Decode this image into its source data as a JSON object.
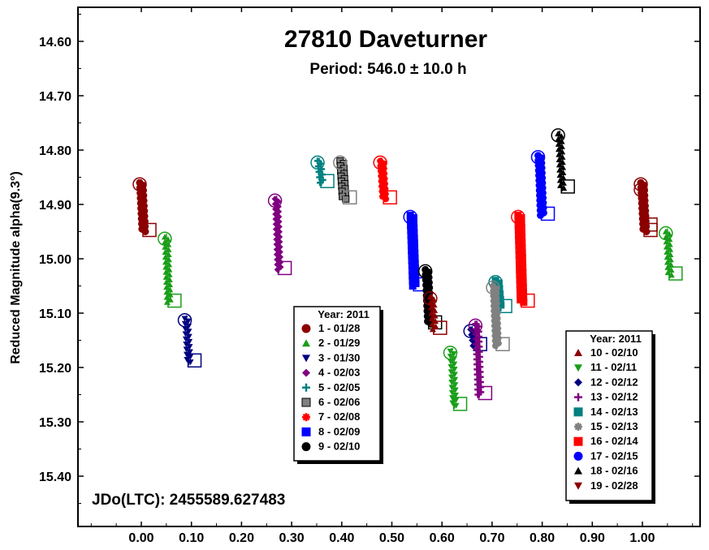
{
  "chart_data": {
    "type": "scatter",
    "title": "27810 Daveturner",
    "subtitle": "Period: 546.0 ± 10.0 h",
    "xlabel": "",
    "ylabel": "Reduced Magnitude alpha(9.3°)",
    "annotation": "JDo(LTC): 2455589.627483",
    "xlim": [
      -0.1,
      1.12
    ],
    "ylim": [
      14.55,
      15.5
    ],
    "y_inverted": true,
    "x_ticks": [
      "0.00",
      "0.10",
      "0.20",
      "0.30",
      "0.40",
      "0.50",
      "0.60",
      "0.70",
      "0.80",
      "0.90",
      "1.00"
    ],
    "y_ticks": [
      "14.60",
      "14.70",
      "14.80",
      "14.90",
      "15.00",
      "15.10",
      "15.20",
      "15.30",
      "15.40"
    ],
    "legend_left": {
      "header": "Year: 2011",
      "entries": [
        "1 - 01/28",
        "2 - 01/29",
        "3 - 01/30",
        "4 - 02/03",
        "5 - 02/05",
        "6 - 02/06",
        "7 - 02/08",
        "8 - 02/09",
        "9 - 02/10"
      ]
    },
    "legend_right": {
      "header": "Year: 2011",
      "entries": [
        "10 - 02/10",
        "11 - 02/11",
        "12 - 02/12",
        "13 - 02/12",
        "14 - 02/13",
        "15 - 02/13",
        "16 - 02/14",
        "17 - 02/15",
        "18 - 02/16",
        "19 - 02/28"
      ]
    },
    "series": [
      {
        "id": 1,
        "color": "#8b0000",
        "marker": "circle",
        "x": [
          0.0,
          1.0
        ],
        "y_range": [
          [
            14.86,
            14.95
          ],
          [
            14.86,
            14.95
          ]
        ]
      },
      {
        "id": 2,
        "color": "#1a9e1a",
        "marker": "triangle-up",
        "x": [
          0.05,
          1.05
        ],
        "y_range": [
          [
            14.96,
            15.08
          ],
          [
            14.95,
            15.03
          ]
        ]
      },
      {
        "id": 3,
        "color": "#000080",
        "marker": "triangle-down",
        "x": [
          0.09
        ],
        "y_range": [
          [
            15.11,
            15.19
          ]
        ]
      },
      {
        "id": 4,
        "color": "#800080",
        "marker": "diamond",
        "x": [
          0.27
        ],
        "y_range": [
          [
            14.89,
            15.02
          ]
        ]
      },
      {
        "id": 5,
        "color": "#008080",
        "marker": "plus",
        "x": [
          0.355
        ],
        "y_range": [
          [
            14.82,
            14.86
          ]
        ]
      },
      {
        "id": 6,
        "color": "#808080",
        "marker": "square",
        "x": [
          0.4
        ],
        "y_range": [
          [
            14.82,
            14.89
          ]
        ]
      },
      {
        "id": 7,
        "color": "#ff0000",
        "marker": "asterisk",
        "x": [
          0.48
        ],
        "y_range": [
          [
            14.82,
            14.89
          ]
        ]
      },
      {
        "id": 8,
        "color": "#0000ff",
        "marker": "square",
        "x": [
          0.54
        ],
        "y_range": [
          [
            14.92,
            15.05
          ]
        ]
      },
      {
        "id": 9,
        "color": "#000000",
        "marker": "circle",
        "x": [
          0.57
        ],
        "y_range": [
          [
            15.02,
            15.12
          ]
        ]
      },
      {
        "id": 10,
        "color": "#8b0000",
        "marker": "triangle-up",
        "x": [
          0.58
        ],
        "y_range": [
          [
            15.07,
            15.13
          ]
        ]
      },
      {
        "id": 11,
        "color": "#1a9e1a",
        "marker": "triangle-down",
        "x": [
          0.62
        ],
        "y_range": [
          [
            15.17,
            15.27
          ]
        ]
      },
      {
        "id": 12,
        "color": "#000080",
        "marker": "diamond",
        "x": [
          0.66
        ],
        "y_range": [
          [
            15.13,
            15.16
          ]
        ]
      },
      {
        "id": 13,
        "color": "#800080",
        "marker": "plus",
        "x": [
          0.67
        ],
        "y_range": [
          [
            15.12,
            15.25
          ]
        ]
      },
      {
        "id": 14,
        "color": "#008080",
        "marker": "square",
        "x": [
          0.71
        ],
        "y_range": [
          [
            15.04,
            15.09
          ]
        ]
      },
      {
        "id": 15,
        "color": "#808080",
        "marker": "asterisk",
        "x": [
          0.705
        ],
        "y_range": [
          [
            15.05,
            15.16
          ]
        ]
      },
      {
        "id": 16,
        "color": "#ff0000",
        "marker": "square",
        "x": [
          0.755
        ],
        "y_range": [
          [
            14.92,
            15.08
          ]
        ]
      },
      {
        "id": 17,
        "color": "#0000ff",
        "marker": "circle",
        "x": [
          0.795
        ],
        "y_range": [
          [
            14.81,
            14.92
          ]
        ]
      },
      {
        "id": 18,
        "color": "#000000",
        "marker": "triangle-up",
        "x": [
          0.835
        ],
        "y_range": [
          [
            14.77,
            14.87
          ]
        ]
      },
      {
        "id": 19,
        "color": "#8b0000",
        "marker": "triangle-down",
        "x": [
          1.0
        ],
        "y_range": [
          [
            14.87,
            14.94
          ]
        ]
      }
    ],
    "grid": false,
    "legend_placement": [
      "center-bottom",
      "right-bottom"
    ]
  }
}
